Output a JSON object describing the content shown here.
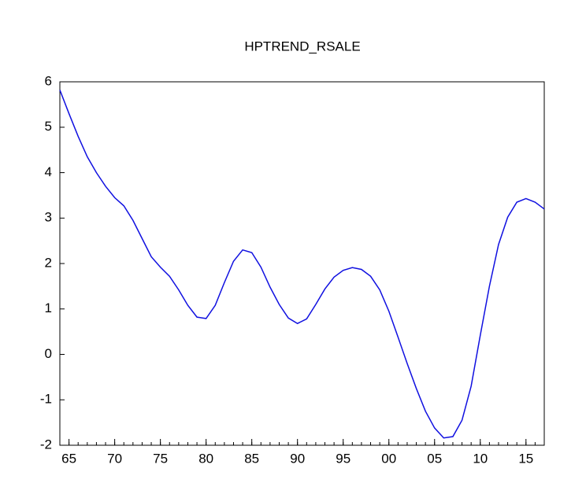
{
  "chart_data": {
    "type": "line",
    "title": "HPTREND_RSALE",
    "x": [
      1964,
      1965,
      1966,
      1967,
      1968,
      1969,
      1970,
      1971,
      1972,
      1973,
      1974,
      1975,
      1976,
      1977,
      1978,
      1979,
      1980,
      1981,
      1982,
      1983,
      1984,
      1985,
      1986,
      1987,
      1988,
      1989,
      1990,
      1991,
      1992,
      1993,
      1994,
      1995,
      1996,
      1997,
      1998,
      1999,
      2000,
      2001,
      2002,
      2003,
      2004,
      2005,
      2006,
      2007,
      2008,
      2009,
      2010,
      2011,
      2012,
      2013,
      2014,
      2015,
      2016,
      2017
    ],
    "series": [
      {
        "color": "#1010e0",
        "values": [
          5.82,
          5.3,
          4.8,
          4.35,
          4.0,
          3.7,
          3.45,
          3.27,
          2.95,
          2.55,
          2.15,
          1.92,
          1.72,
          1.42,
          1.08,
          0.82,
          0.79,
          1.08,
          1.58,
          2.05,
          2.3,
          2.24,
          1.92,
          1.48,
          1.1,
          0.8,
          0.68,
          0.78,
          1.1,
          1.44,
          1.7,
          1.85,
          1.91,
          1.87,
          1.72,
          1.42,
          0.95,
          0.38,
          -0.2,
          -0.75,
          -1.25,
          -1.62,
          -1.84,
          -1.81,
          -1.45,
          -0.7,
          0.42,
          1.5,
          2.42,
          3.02,
          3.35,
          3.43,
          3.35,
          3.2
        ]
      }
    ],
    "xlim": [
      1964,
      2017
    ],
    "xticks": [
      {
        "value": 1965,
        "label": "65"
      },
      {
        "value": 1970,
        "label": "70"
      },
      {
        "value": 1975,
        "label": "75"
      },
      {
        "value": 1980,
        "label": "80"
      },
      {
        "value": 1985,
        "label": "85"
      },
      {
        "value": 1990,
        "label": "90"
      },
      {
        "value": 1995,
        "label": "95"
      },
      {
        "value": 2000,
        "label": "00"
      },
      {
        "value": 2005,
        "label": "05"
      },
      {
        "value": 2010,
        "label": "10"
      },
      {
        "value": 2015,
        "label": "15"
      }
    ],
    "ylim": [
      -2,
      6
    ],
    "yticks": [
      -2,
      -1,
      0,
      1,
      2,
      3,
      4,
      5,
      6
    ],
    "grid": false
  }
}
